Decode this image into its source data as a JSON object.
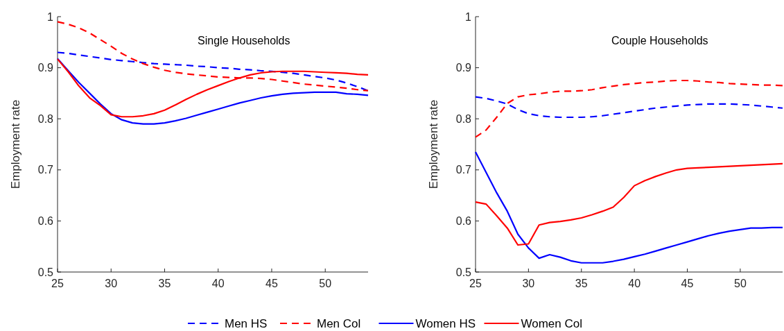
{
  "chart_data": [
    {
      "type": "line",
      "title": "Single Households",
      "ylabel": "Employment rate",
      "xlim": [
        25,
        54
      ],
      "xticks": [
        25,
        30,
        35,
        40,
        45,
        50
      ],
      "ylim": [
        0.5,
        1
      ],
      "yticks": [
        0.5,
        0.6,
        0.7,
        0.8,
        0.9,
        1
      ],
      "legend": "bottom",
      "x": [
        25,
        26,
        27,
        28,
        29,
        30,
        31,
        32,
        33,
        34,
        35,
        36,
        37,
        38,
        39,
        40,
        41,
        42,
        43,
        44,
        45,
        46,
        47,
        48,
        49,
        50,
        51,
        52,
        53,
        54
      ],
      "series": [
        {
          "name": "Men HS",
          "color": "#0000ff",
          "line_style": "dashed",
          "values": [
            0.93,
            0.928,
            0.925,
            0.922,
            0.919,
            0.916,
            0.914,
            0.912,
            0.91,
            0.908,
            0.907,
            0.906,
            0.905,
            0.903,
            0.902,
            0.9,
            0.899,
            0.897,
            0.896,
            0.894,
            0.893,
            0.891,
            0.889,
            0.886,
            0.883,
            0.88,
            0.876,
            0.87,
            0.863,
            0.855
          ]
        },
        {
          "name": "Men Col",
          "color": "#ff0000",
          "line_style": "dashed",
          "values": [
            0.99,
            0.985,
            0.978,
            0.968,
            0.955,
            0.942,
            0.928,
            0.917,
            0.908,
            0.901,
            0.895,
            0.891,
            0.888,
            0.886,
            0.884,
            0.882,
            0.881,
            0.88,
            0.88,
            0.879,
            0.877,
            0.874,
            0.871,
            0.868,
            0.866,
            0.864,
            0.862,
            0.86,
            0.857,
            0.855
          ]
        },
        {
          "name": "Women HS",
          "color": "#0000ff",
          "line_style": "solid",
          "values": [
            0.918,
            0.894,
            0.871,
            0.85,
            0.829,
            0.81,
            0.798,
            0.792,
            0.79,
            0.79,
            0.792,
            0.796,
            0.801,
            0.807,
            0.813,
            0.819,
            0.825,
            0.831,
            0.836,
            0.841,
            0.845,
            0.848,
            0.85,
            0.851,
            0.852,
            0.852,
            0.852,
            0.849,
            0.848,
            0.846
          ]
        },
        {
          "name": "Women Col",
          "color": "#ff0000",
          "line_style": "solid",
          "values": [
            0.917,
            0.892,
            0.864,
            0.841,
            0.826,
            0.808,
            0.804,
            0.804,
            0.806,
            0.81,
            0.817,
            0.827,
            0.838,
            0.848,
            0.857,
            0.865,
            0.873,
            0.88,
            0.886,
            0.89,
            0.892,
            0.893,
            0.893,
            0.893,
            0.892,
            0.891,
            0.89,
            0.889,
            0.887,
            0.886
          ]
        }
      ]
    },
    {
      "type": "line",
      "title": "Couple Households",
      "ylabel": "Employment rate",
      "xlim": [
        25,
        54
      ],
      "xticks": [
        25,
        30,
        35,
        40,
        45,
        50
      ],
      "ylim": [
        0.5,
        1
      ],
      "yticks": [
        0.5,
        0.6,
        0.7,
        0.8,
        0.9,
        1
      ],
      "legend": "bottom",
      "x": [
        25,
        26,
        27,
        28,
        29,
        30,
        31,
        32,
        33,
        34,
        35,
        36,
        37,
        38,
        39,
        40,
        41,
        42,
        43,
        44,
        45,
        46,
        47,
        48,
        49,
        50,
        51,
        52,
        53,
        54
      ],
      "series": [
        {
          "name": "Men HS",
          "color": "#0000ff",
          "line_style": "dashed",
          "values": [
            0.843,
            0.84,
            0.835,
            0.829,
            0.818,
            0.81,
            0.806,
            0.804,
            0.803,
            0.803,
            0.803,
            0.804,
            0.806,
            0.809,
            0.812,
            0.815,
            0.818,
            0.821,
            0.823,
            0.825,
            0.827,
            0.828,
            0.829,
            0.829,
            0.829,
            0.828,
            0.827,
            0.825,
            0.823,
            0.821
          ]
        },
        {
          "name": "Men Col",
          "color": "#ff0000",
          "line_style": "dashed",
          "values": [
            0.764,
            0.778,
            0.803,
            0.83,
            0.843,
            0.847,
            0.849,
            0.852,
            0.854,
            0.854,
            0.855,
            0.857,
            0.861,
            0.864,
            0.867,
            0.869,
            0.871,
            0.872,
            0.874,
            0.875,
            0.875,
            0.874,
            0.872,
            0.871,
            0.869,
            0.868,
            0.867,
            0.866,
            0.866,
            0.865
          ]
        },
        {
          "name": "Women HS",
          "color": "#0000ff",
          "line_style": "solid",
          "values": [
            0.735,
            0.695,
            0.655,
            0.619,
            0.574,
            0.547,
            0.527,
            0.534,
            0.529,
            0.522,
            0.518,
            0.518,
            0.518,
            0.521,
            0.525,
            0.53,
            0.535,
            0.541,
            0.547,
            0.553,
            0.559,
            0.565,
            0.571,
            0.576,
            0.58,
            0.583,
            0.586,
            0.586,
            0.587,
            0.587
          ]
        },
        {
          "name": "Women Col",
          "color": "#ff0000",
          "line_style": "solid",
          "values": [
            0.637,
            0.633,
            0.61,
            0.586,
            0.553,
            0.555,
            0.592,
            0.597,
            0.599,
            0.602,
            0.606,
            0.612,
            0.619,
            0.627,
            0.646,
            0.669,
            0.679,
            0.687,
            0.694,
            0.7,
            0.703,
            0.704,
            0.705,
            0.706,
            0.707,
            0.708,
            0.709,
            0.71,
            0.711,
            0.712
          ]
        }
      ]
    }
  ]
}
